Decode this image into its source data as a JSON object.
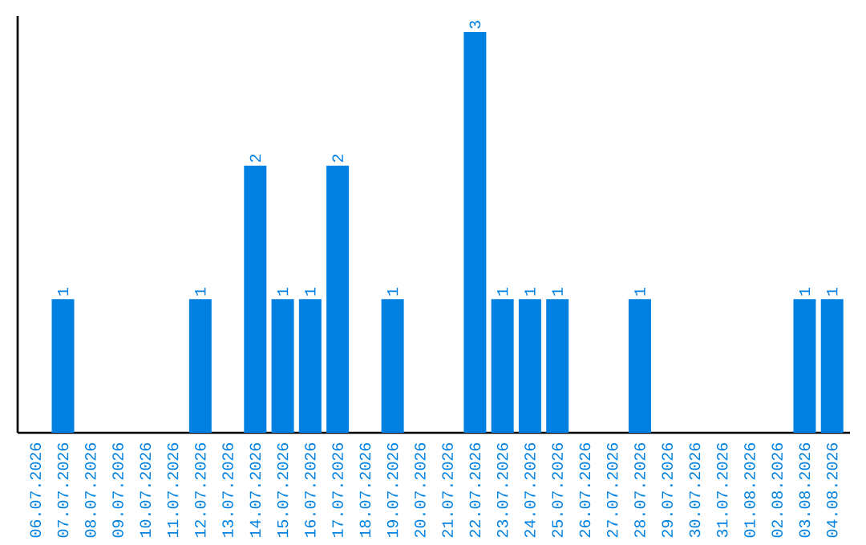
{
  "chart_data": {
    "type": "bar",
    "categories": [
      "06.07.2026",
      "07.07.2026",
      "08.07.2026",
      "09.07.2026",
      "10.07.2026",
      "11.07.2026",
      "12.07.2026",
      "13.07.2026",
      "14.07.2026",
      "15.07.2026",
      "16.07.2026",
      "17.07.2026",
      "18.07.2026",
      "19.07.2026",
      "20.07.2026",
      "21.07.2026",
      "22.07.2026",
      "23.07.2026",
      "24.07.2026",
      "25.07.2026",
      "26.07.2026",
      "27.07.2026",
      "28.07.2026",
      "29.07.2026",
      "30.07.2026",
      "31.07.2026",
      "01.08.2026",
      "02.08.2026",
      "03.08.2026",
      "04.08.2026"
    ],
    "values": [
      0,
      1,
      0,
      0,
      0,
      0,
      1,
      0,
      2,
      1,
      1,
      2,
      0,
      1,
      0,
      0,
      3,
      1,
      1,
      1,
      0,
      0,
      1,
      0,
      0,
      0,
      0,
      0,
      1,
      1
    ],
    "value_labels": [
      null,
      "1",
      null,
      null,
      null,
      null,
      "1",
      null,
      "2",
      "1",
      "1",
      "2",
      null,
      "1",
      null,
      null,
      "3",
      "1",
      "1",
      "1",
      null,
      null,
      "1",
      null,
      null,
      null,
      null,
      null,
      "1",
      "1"
    ],
    "color": "#0080e0"
  }
}
